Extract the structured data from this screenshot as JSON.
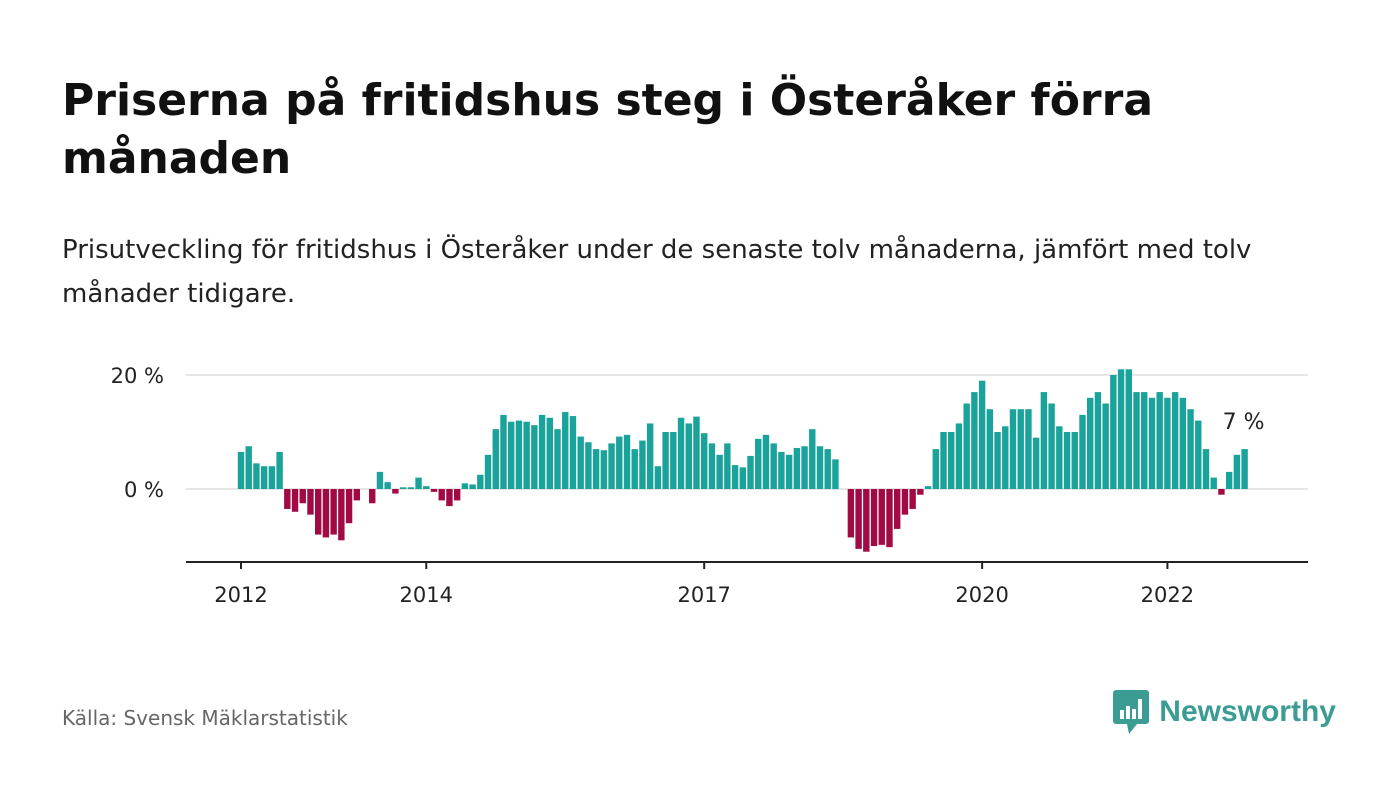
{
  "title": "Priserna på fritidshus steg i Österåker förra månaden",
  "subtitle": "Prisutveckling för fritidshus i Österåker under de senaste tolv månaderna, jämfört med tolv månader tidigare.",
  "source": "Källa: Svensk Mäklarstatistik",
  "brand": {
    "name": "Newsworthy",
    "icon": "newsworthy-logo-icon",
    "color": "#3a9c92"
  },
  "chart_data": {
    "type": "bar",
    "title": "",
    "xlabel": "",
    "ylabel": "",
    "start": {
      "year": 2012,
      "month": 1
    },
    "values": [
      6.5,
      7.5,
      4.5,
      4,
      4,
      6.5,
      -3.5,
      -4,
      -2.5,
      -4.5,
      -8,
      -8.5,
      -8,
      -9,
      -6,
      -2,
      0,
      -2.5,
      3,
      1.2,
      -0.8,
      0.3,
      0.3,
      2,
      0.5,
      -0.5,
      -2,
      -3,
      -2,
      1,
      0.8,
      2.5,
      6,
      10.5,
      13,
      11.8,
      12,
      11.8,
      11.2,
      13,
      12.5,
      10.5,
      13.5,
      12.8,
      9.2,
      8.2,
      7,
      6.8,
      8,
      9.2,
      9.5,
      7,
      8.5,
      11.5,
      4,
      10,
      10,
      12.5,
      11.5,
      12.7,
      9.8,
      8,
      6,
      8,
      4.2,
      3.8,
      5.8,
      8.8,
      9.5,
      8,
      6.5,
      6,
      7.2,
      7.5,
      10.5,
      7.5,
      7,
      5.2,
      0,
      -8.5,
      -10.5,
      -11,
      -10,
      -9.8,
      -10.2,
      -7,
      -4.5,
      -3.5,
      -1,
      0.5,
      7,
      10,
      10,
      11.5,
      15,
      17,
      19,
      14,
      10,
      11,
      14,
      14,
      14,
      9,
      17,
      15,
      11,
      10,
      10,
      13,
      16,
      17,
      15,
      20,
      21,
      21,
      17,
      17,
      16,
      17,
      16,
      17,
      16,
      14,
      12,
      7,
      2,
      -1,
      3,
      6,
      7
    ],
    "ylim": [
      -12.5,
      20
    ],
    "y_ticks": [
      {
        "value": 20,
        "label": "20 %"
      },
      {
        "value": 0,
        "label": "0 %"
      }
    ],
    "x_ticks": [
      {
        "year": 2012,
        "label": "2012"
      },
      {
        "year": 2014,
        "label": "2014"
      },
      {
        "year": 2017,
        "label": "2017"
      },
      {
        "year": 2020,
        "label": "2020"
      },
      {
        "year": 2022,
        "label": "2022"
      }
    ],
    "last_value_label": "7 %",
    "grid": true,
    "colors": {
      "positive": "#1aa39a",
      "negative": "#a10a45",
      "grid": "#dddddd",
      "axis": "#222222"
    }
  }
}
